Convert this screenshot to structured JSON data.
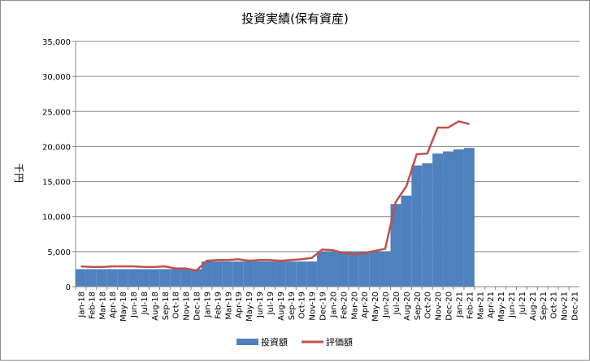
{
  "chart_data": {
    "type": "bar+line",
    "title": "投資実績(保有資産)",
    "ylabel": "千円",
    "xlabel": "",
    "ylim": [
      0,
      35000
    ],
    "yticks": [
      "0",
      "5,000",
      "10,000",
      "15,000",
      "20,000",
      "25,000",
      "30,000",
      "35,000"
    ],
    "categories": [
      "Jan-18",
      "Feb-18",
      "Mar-18",
      "Apr-18",
      "May-18",
      "Jun-18",
      "Jul-18",
      "Aug-18",
      "Sep-18",
      "Oct-18",
      "Nov-18",
      "Dec-18",
      "Jan-19",
      "Feb-19",
      "Mar-19",
      "Apr-19",
      "May-19",
      "Jun-19",
      "Jul-19",
      "Aug-19",
      "Sep-19",
      "Oct-19",
      "Nov-19",
      "Dec-19",
      "Jan-20",
      "Feb-20",
      "Mar-20",
      "Apr-20",
      "May-20",
      "Jun-20",
      "Jul-20",
      "Aug-20",
      "Sep-20",
      "Oct-20",
      "Nov-20",
      "Dec-20",
      "Jan-21",
      "Feb-21",
      "Mar-21",
      "Apr-21",
      "May-21",
      "Jun-21",
      "Jul-21",
      "Aug-21",
      "Sep-21",
      "Oct-21",
      "Nov-21",
      "Dec-21"
    ],
    "series": [
      {
        "name": "投資額",
        "kind": "bar",
        "color": "#4f81bd",
        "values": [
          2500,
          2500,
          2500,
          2500,
          2500,
          2500,
          2500,
          2500,
          2500,
          2500,
          2500,
          2500,
          3600,
          3600,
          3600,
          3600,
          3600,
          3600,
          3600,
          3600,
          3600,
          3600,
          3600,
          5000,
          5000,
          5000,
          5000,
          5000,
          5000,
          5000,
          11800,
          13000,
          17300,
          17600,
          19000,
          19300,
          19600,
          19800,
          null,
          null,
          null,
          null,
          null,
          null,
          null,
          null,
          null,
          null
        ]
      },
      {
        "name": "評価額",
        "kind": "line",
        "color": "#c0504d",
        "values": [
          2900,
          2800,
          2800,
          2900,
          2900,
          2900,
          2800,
          2800,
          2900,
          2600,
          2600,
          2300,
          3700,
          3800,
          3800,
          3900,
          3700,
          3800,
          3800,
          3700,
          3800,
          3900,
          4100,
          5300,
          5200,
          4800,
          4600,
          4800,
          5100,
          5400,
          12100,
          14300,
          18900,
          19000,
          22700,
          22700,
          23600,
          23200,
          null,
          null,
          null,
          null,
          null,
          null,
          null,
          null,
          null,
          null
        ]
      }
    ],
    "grid": true,
    "legend_position": "bottom"
  }
}
